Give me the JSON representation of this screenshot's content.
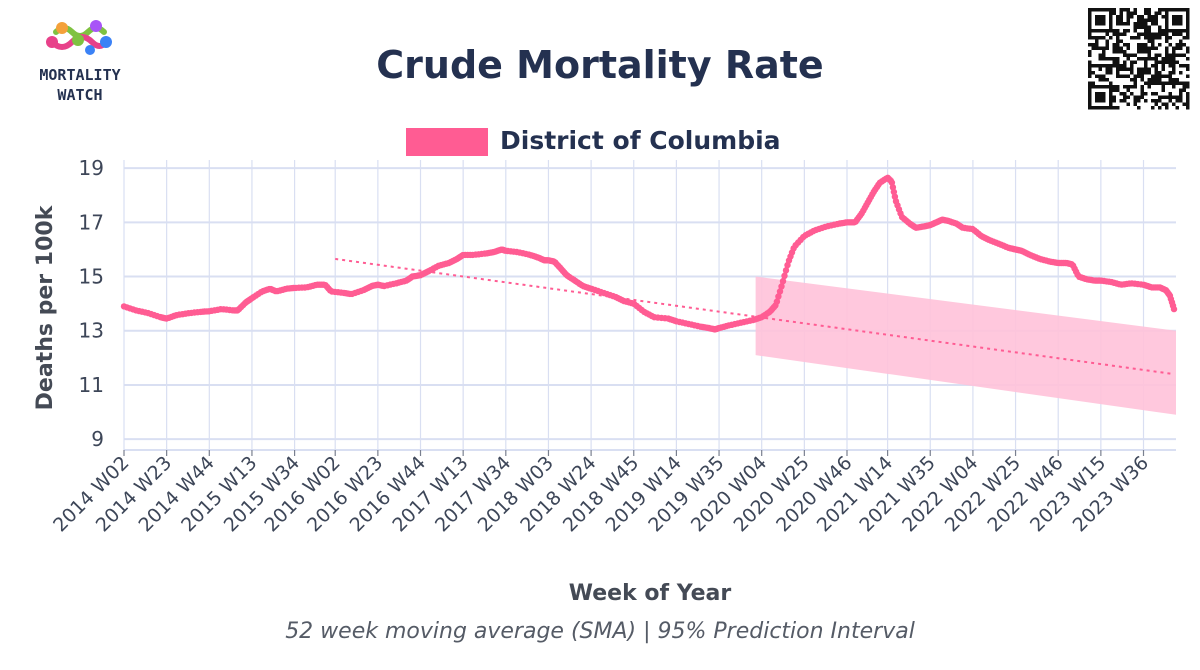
{
  "header": {
    "logo_line1": "MORTALITY",
    "logo_line2": "WATCH"
  },
  "colors": {
    "series": "#ff5c93",
    "band": "#ffc2d9",
    "trend": "#ff5c93",
    "grid": "#d9dff2",
    "text": "#243150"
  },
  "chart_data": {
    "type": "line",
    "title": "Crude Mortality Rate",
    "subtitle": "52 week moving average (SMA) | 95% Prediction Interval",
    "xlabel": "Week of Year",
    "ylabel": "Deaths per 100k",
    "ylim": [
      8.6,
      19.3
    ],
    "yticks": [
      9,
      11,
      13,
      15,
      17,
      19
    ],
    "grid": true,
    "legend_position": "top-center",
    "x_start": "2014 W02",
    "x_end": "2023 W52",
    "tick_labels": [
      "2014 W02",
      "2014 W23",
      "2014 W44",
      "2015 W13",
      "2015 W34",
      "2016 W02",
      "2016 W23",
      "2016 W44",
      "2017 W13",
      "2017 W34",
      "2018 W03",
      "2018 W24",
      "2018 W45",
      "2019 W14",
      "2019 W35",
      "2020 W04",
      "2020 W25",
      "2020 W46",
      "2021 W14",
      "2021 W35",
      "2022 W04",
      "2022 W25",
      "2022 W46",
      "2023 W15",
      "2023 W36"
    ],
    "series": [
      {
        "name": "District of Columbia",
        "points": [
          [
            "2014 W02",
            13.9
          ],
          [
            "2014 W08",
            13.75
          ],
          [
            "2014 W14",
            13.65
          ],
          [
            "2014 W20",
            13.5
          ],
          [
            "2014 W23",
            13.45
          ],
          [
            "2014 W28",
            13.58
          ],
          [
            "2014 W34",
            13.65
          ],
          [
            "2014 W40",
            13.7
          ],
          [
            "2014 W44",
            13.72
          ],
          [
            "2014 W50",
            13.8
          ],
          [
            "2015 W04",
            13.75
          ],
          [
            "2015 W06",
            13.75
          ],
          [
            "2015 W10",
            14.05
          ],
          [
            "2015 W13",
            14.2
          ],
          [
            "2015 W18",
            14.45
          ],
          [
            "2015 W22",
            14.55
          ],
          [
            "2015 W25",
            14.45
          ],
          [
            "2015 W30",
            14.55
          ],
          [
            "2015 W34",
            14.58
          ],
          [
            "2015 W40",
            14.6
          ],
          [
            "2015 W45",
            14.7
          ],
          [
            "2015 W49",
            14.7
          ],
          [
            "2015 W52",
            14.45
          ],
          [
            "2016 W06",
            14.4
          ],
          [
            "2016 W10",
            14.35
          ],
          [
            "2016 W16",
            14.5
          ],
          [
            "2016 W20",
            14.65
          ],
          [
            "2016 W23",
            14.7
          ],
          [
            "2016 W26",
            14.65
          ],
          [
            "2016 W32",
            14.75
          ],
          [
            "2016 W37",
            14.85
          ],
          [
            "2016 W40",
            15.0
          ],
          [
            "2016 W44",
            15.05
          ],
          [
            "2016 W48",
            15.2
          ],
          [
            "2017 W01",
            15.4
          ],
          [
            "2017 W06",
            15.5
          ],
          [
            "2017 W10",
            15.65
          ],
          [
            "2017 W13",
            15.8
          ],
          [
            "2017 W18",
            15.8
          ],
          [
            "2017 W24",
            15.85
          ],
          [
            "2017 W28",
            15.9
          ],
          [
            "2017 W32",
            16.0
          ],
          [
            "2017 W34",
            15.95
          ],
          [
            "2017 W40",
            15.9
          ],
          [
            "2017 W46",
            15.8
          ],
          [
            "2017 W50",
            15.7
          ],
          [
            "2018 W01",
            15.6
          ],
          [
            "2018 W03",
            15.6
          ],
          [
            "2018 W06",
            15.55
          ],
          [
            "2018 W09",
            15.3
          ],
          [
            "2018 W12",
            15.05
          ],
          [
            "2018 W16",
            14.85
          ],
          [
            "2018 W20",
            14.65
          ],
          [
            "2018 W24",
            14.55
          ],
          [
            "2018 W30",
            14.4
          ],
          [
            "2018 W36",
            14.25
          ],
          [
            "2018 W40",
            14.1
          ],
          [
            "2018 W45",
            14.0
          ],
          [
            "2018 W50",
            13.7
          ],
          [
            "2019 W03",
            13.5
          ],
          [
            "2019 W10",
            13.45
          ],
          [
            "2019 W14",
            13.35
          ],
          [
            "2019 W20",
            13.25
          ],
          [
            "2019 W26",
            13.15
          ],
          [
            "2019 W30",
            13.1
          ],
          [
            "2019 W33",
            13.05
          ],
          [
            "2019 W35",
            13.1
          ],
          [
            "2019 W40",
            13.2
          ],
          [
            "2019 W46",
            13.3
          ],
          [
            "2019 W52",
            13.4
          ],
          [
            "2020 W04",
            13.5
          ],
          [
            "2020 W08",
            13.7
          ],
          [
            "2020 W11",
            13.95
          ],
          [
            "2020 W14",
            14.7
          ],
          [
            "2020 W17",
            15.5
          ],
          [
            "2020 W20",
            16.1
          ],
          [
            "2020 W25",
            16.5
          ],
          [
            "2020 W30",
            16.7
          ],
          [
            "2020 W36",
            16.85
          ],
          [
            "2020 W42",
            16.95
          ],
          [
            "2020 W46",
            17.0
          ],
          [
            "2020 W50",
            17.0
          ],
          [
            "2021 W01",
            17.3
          ],
          [
            "2021 W04",
            17.7
          ],
          [
            "2021 W07",
            18.1
          ],
          [
            "2021 W10",
            18.45
          ],
          [
            "2021 W14",
            18.65
          ],
          [
            "2021 W16",
            18.5
          ],
          [
            "2021 W18",
            17.8
          ],
          [
            "2021 W21",
            17.2
          ],
          [
            "2021 W25",
            16.95
          ],
          [
            "2021 W28",
            16.8
          ],
          [
            "2021 W32",
            16.85
          ],
          [
            "2021 W35",
            16.9
          ],
          [
            "2021 W38",
            17.0
          ],
          [
            "2021 W41",
            17.1
          ],
          [
            "2021 W44",
            17.05
          ],
          [
            "2021 W48",
            16.95
          ],
          [
            "2021 W51",
            16.8
          ],
          [
            "2022 W04",
            16.75
          ],
          [
            "2022 W08",
            16.5
          ],
          [
            "2022 W12",
            16.35
          ],
          [
            "2022 W17",
            16.2
          ],
          [
            "2022 W22",
            16.05
          ],
          [
            "2022 W25",
            16.0
          ],
          [
            "2022 W28",
            15.95
          ],
          [
            "2022 W32",
            15.8
          ],
          [
            "2022 W37",
            15.65
          ],
          [
            "2022 W42",
            15.55
          ],
          [
            "2022 W46",
            15.5
          ],
          [
            "2022 W50",
            15.5
          ],
          [
            "2023 W01",
            15.45
          ],
          [
            "2023 W04",
            15.0
          ],
          [
            "2023 W08",
            14.9
          ],
          [
            "2023 W12",
            14.85
          ],
          [
            "2023 W15",
            14.85
          ],
          [
            "2023 W20",
            14.8
          ],
          [
            "2023 W25",
            14.7
          ],
          [
            "2023 W30",
            14.75
          ],
          [
            "2023 W36",
            14.7
          ],
          [
            "2023 W40",
            14.6
          ],
          [
            "2023 W44",
            14.6
          ],
          [
            "2023 W47",
            14.5
          ],
          [
            "2023 W49",
            14.3
          ],
          [
            "2023 W51",
            13.8
          ]
        ]
      }
    ],
    "trend_line": {
      "start": [
        "2016 W02",
        15.65
      ],
      "end": [
        "2023 W51",
        11.4
      ]
    },
    "prediction_interval": {
      "start": "2020 W01",
      "end": "2023 W52",
      "lower_start": 12.1,
      "upper_start": 15.0,
      "lower_end": 9.9,
      "upper_end": 13.0
    }
  }
}
